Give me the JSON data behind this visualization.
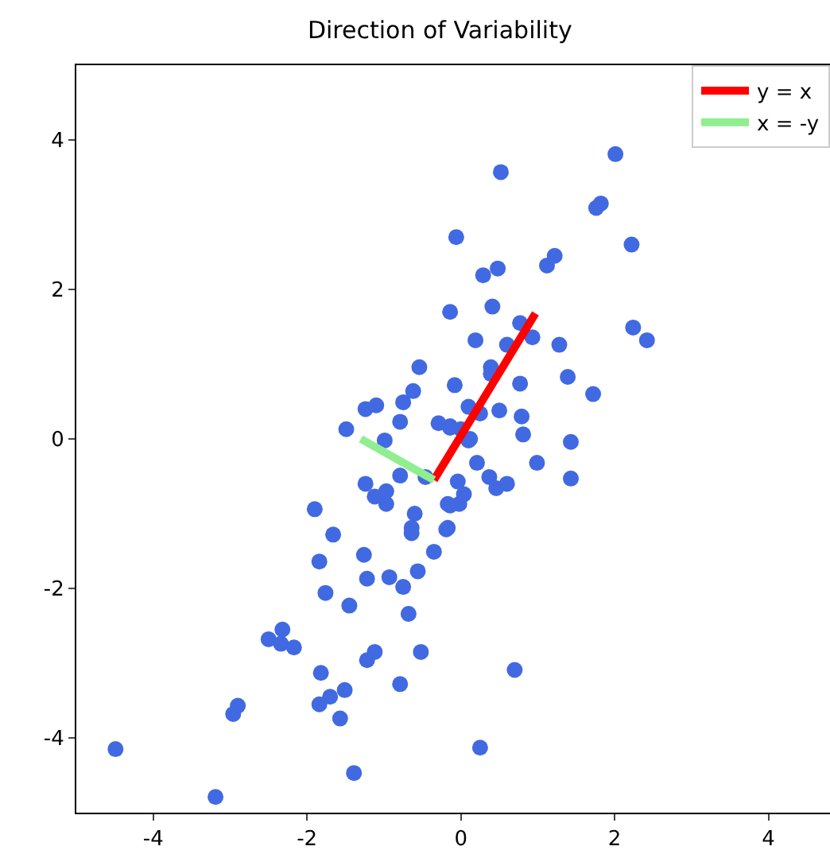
{
  "chart_data": {
    "type": "scatter",
    "title": "Direction of Variability",
    "xlim": [
      -5,
      4.8
    ],
    "ylim": [
      -5,
      5
    ],
    "xticks": [
      -4,
      -2,
      0,
      2,
      4
    ],
    "yticks": [
      -4,
      -2,
      0,
      2,
      4
    ],
    "grid": false,
    "legend": "top right",
    "series": [
      {
        "color": "#4169e1",
        "marker": "circle",
        "x": [
          2.01,
          1.82,
          1.76,
          0.52,
          -0.06,
          2.22,
          1.22,
          1.12,
          0.48,
          0.29,
          -0.14,
          0.41,
          0.77,
          0.93,
          0.19,
          0.6,
          1.28,
          2.24,
          2.42,
          0.39,
          0.39,
          0.77,
          1.39,
          1.72,
          -0.08,
          0.1,
          0.25,
          0.5,
          0.79,
          0.81,
          1.43,
          -0.14,
          0,
          0.12,
          -0.54,
          -0.62,
          -0.75,
          -0.79,
          -1.1,
          -1.24,
          -1.49,
          -0.99,
          -0.29,
          -0.14,
          0.1,
          0.21,
          0.99,
          1.43,
          0.37,
          0.46,
          0.6,
          -0.04,
          0.04,
          -0.02,
          -0.14,
          -0.17,
          0.7,
          0.25,
          -0.79,
          -0.46,
          -1.24,
          -1.12,
          -0.97,
          -0.97,
          -1.9,
          -0.6,
          -0.64,
          -0.64,
          -0.17,
          -0.19,
          -1.66,
          -0.35,
          -1.26,
          -1.84,
          -0.56,
          -0.93,
          -1.22,
          -0.75,
          -1.76,
          -1.45,
          -0.68,
          -2.32,
          -2.5,
          -2.34,
          -2.17,
          -0.52,
          -1.12,
          -1.22,
          -1.82,
          -0.79,
          -1.51,
          -1.7,
          -1.84,
          -1.57,
          -2.9,
          -2.96,
          -4.49,
          -1.39,
          -3.19
        ],
        "values": [
          3.81,
          3.15,
          3.09,
          3.57,
          2.7,
          2.6,
          2.45,
          2.32,
          2.28,
          2.19,
          1.7,
          1.77,
          1.55,
          1.36,
          1.32,
          1.26,
          1.26,
          1.49,
          1.32,
          0.96,
          0.87,
          0.74,
          0.83,
          0.6,
          0.72,
          0.43,
          0.34,
          0.38,
          0.3,
          0.06,
          -0.04,
          0.17,
          0.13,
          0,
          0.96,
          0.64,
          0.49,
          0.23,
          0.45,
          0.4,
          0.13,
          -0.02,
          0.21,
          0.15,
          -0.02,
          -0.32,
          -0.32,
          -0.53,
          -0.51,
          -0.66,
          -0.6,
          -0.57,
          -0.74,
          -0.87,
          -0.89,
          -1.19,
          -3.09,
          -4.13,
          -0.49,
          -0.51,
          -0.6,
          -0.77,
          -0.7,
          -0.87,
          -0.94,
          -1,
          -1.19,
          -1.26,
          -0.87,
          -1.21,
          -1.28,
          -1.51,
          -1.55,
          -1.64,
          -1.77,
          -1.85,
          -1.87,
          -1.98,
          -2.06,
          -2.23,
          -2.34,
          -2.55,
          -2.68,
          -2.74,
          -2.79,
          -2.85,
          -2.85,
          -2.96,
          -3.13,
          -3.28,
          -3.36,
          -3.45,
          -3.55,
          -3.74,
          -3.57,
          -3.68,
          -4.15,
          -4.47,
          -4.79
        ]
      },
      {
        "type": "line",
        "name": "y = x",
        "color": "#ff0000",
        "marker": "none",
        "x": [
          -0.35,
          0.97
        ],
        "values": [
          -0.55,
          1.68
        ]
      },
      {
        "type": "line",
        "name": "x = -y",
        "color": "#90ee90",
        "marker": "none",
        "x": [
          -1.3,
          -0.35
        ],
        "values": [
          0.0,
          -0.55
        ]
      }
    ]
  }
}
